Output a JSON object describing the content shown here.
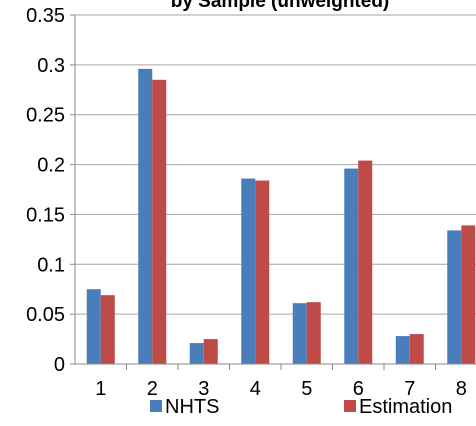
{
  "chart_data": {
    "type": "bar",
    "title": "by Sample (unweighted)",
    "xlabel": "",
    "ylabel": "",
    "categories": [
      "1",
      "2",
      "3",
      "4",
      "5",
      "6",
      "7",
      "8"
    ],
    "series": [
      {
        "name": "NHTS",
        "color": "#4a7ebb",
        "values": [
          0.075,
          0.296,
          0.021,
          0.186,
          0.061,
          0.196,
          0.028,
          0.134
        ]
      },
      {
        "name": "Estimation",
        "color": "#be4b48",
        "values": [
          0.069,
          0.285,
          0.025,
          0.184,
          0.062,
          0.204,
          0.03,
          0.139
        ]
      }
    ],
    "ylim": [
      0,
      0.35
    ],
    "yticks": [
      "0",
      "0.05",
      "0.1",
      "0.15",
      "0.2",
      "0.25",
      "0.3",
      "0.35"
    ],
    "grid": true,
    "legend_position": "bottom"
  }
}
